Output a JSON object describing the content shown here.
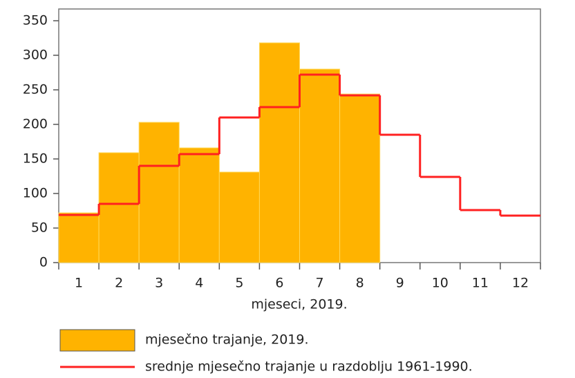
{
  "chart_data": {
    "type": "bar",
    "xlabel": "mjeseci, 2019.",
    "categories": [
      "1",
      "2",
      "3",
      "4",
      "5",
      "6",
      "7",
      "8",
      "9",
      "10",
      "11",
      "12"
    ],
    "series": [
      {
        "name": "mjesečno trajanje, 2019.",
        "type": "bar",
        "color": "#ffb300",
        "values": [
          72,
          159,
          203,
          166,
          131,
          318,
          280,
          244,
          null,
          null,
          null,
          null
        ]
      },
      {
        "name": "srednje mjesečno trajanje u razdoblju 1961-1990.",
        "type": "step",
        "color": "#ff2020",
        "values": [
          69,
          85,
          140,
          157,
          210,
          225,
          272,
          242,
          185,
          124,
          76,
          68
        ]
      }
    ],
    "ylim": [
      0,
      367
    ],
    "yticks": [
      0,
      50,
      100,
      150,
      200,
      250,
      300,
      350
    ]
  }
}
